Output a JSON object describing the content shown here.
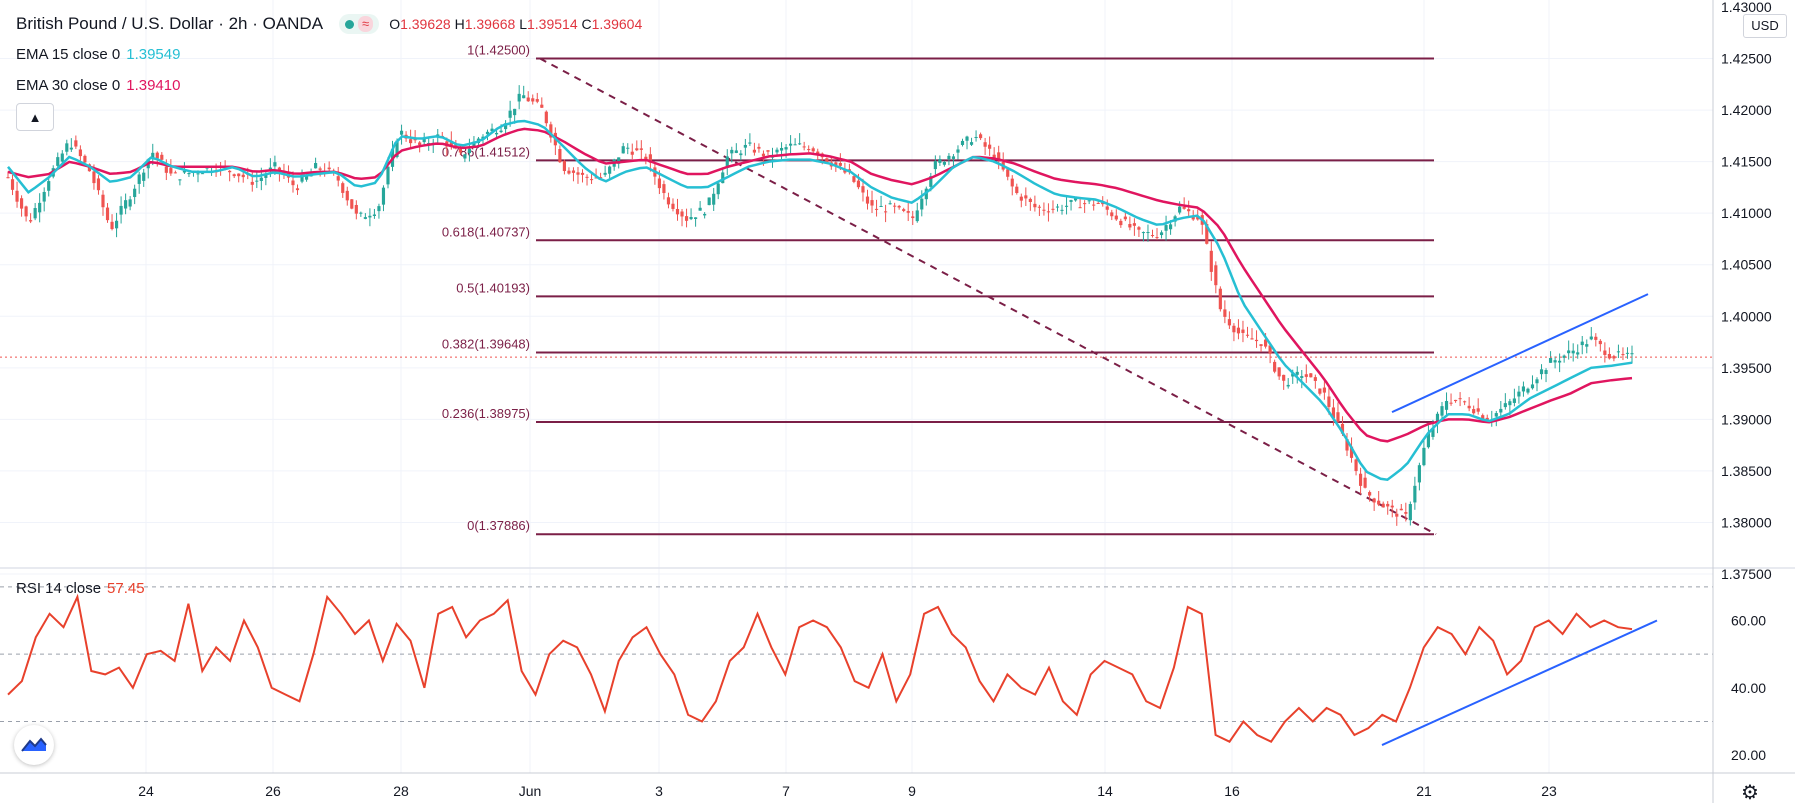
{
  "header": {
    "title": "British Pound / U.S. Dollar · 2h · OANDA",
    "open_label": "O",
    "open": "1.39628",
    "high_label": "H",
    "high": "1.39668",
    "low_label": "L",
    "low": "1.39514",
    "close_label": "C",
    "close": "1.39604",
    "wave_icon": "≈"
  },
  "indicators": {
    "ema15": {
      "label": "EMA 15 close 0",
      "value": "1.39549",
      "color": "#26bfd3"
    },
    "ema30": {
      "label": "EMA 30 close 0",
      "value": "1.39410",
      "color": "#e0155f"
    },
    "rsi": {
      "label": "RSI 14 close",
      "value": "57.45",
      "color": "#e8412c"
    }
  },
  "price_axis": {
    "currency": "USD",
    "top_partial": "1.43000",
    "ticks": [
      "1.42500",
      "1.42000",
      "1.41500",
      "1.41000",
      "1.40500",
      "1.40000",
      "1.39500",
      "1.39000",
      "1.38500",
      "1.38000",
      "1.37500"
    ]
  },
  "rsi_axis": {
    "ticks": [
      "60.00",
      "40.00",
      "20.00"
    ]
  },
  "time_axis": {
    "labels": [
      "24",
      "26",
      "28",
      "Jun",
      "3",
      "7",
      "9",
      "14",
      "16",
      "21",
      "23"
    ]
  },
  "colors": {
    "bull": "#26a69a",
    "bear": "#ef5350",
    "fib": "#7b1f47",
    "trend": "#2962ff"
  },
  "chart_data": [
    {
      "type": "candlestick",
      "title": "British Pound / U.S. Dollar, 2h, OANDA",
      "ylim": [
        1.375,
        1.43
      ],
      "x_labels": [
        "24",
        "26",
        "28",
        "Jun",
        "3",
        "7",
        "9",
        "14",
        "16",
        "21",
        "23"
      ],
      "fib_levels": [
        {
          "ratio": "1",
          "price": 1.425,
          "label": "1(1.42500)"
        },
        {
          "ratio": "0.786",
          "price": 1.41512,
          "label": "0.786(1.41512)"
        },
        {
          "ratio": "0.618",
          "price": 1.40737,
          "label": "0.618(1.40737)"
        },
        {
          "ratio": "0.5",
          "price": 1.40193,
          "label": "0.5(1.40193)"
        },
        {
          "ratio": "0.382",
          "price": 1.39648,
          "label": "0.382(1.39648)"
        },
        {
          "ratio": "0.236",
          "price": 1.38975,
          "label": "0.236(1.38975)"
        },
        {
          "ratio": "0",
          "price": 1.37886,
          "label": "0(1.37886)"
        }
      ],
      "close_anchors": [
        1.4135,
        1.409,
        1.4135,
        1.417,
        1.414,
        1.4085,
        1.412,
        1.416,
        1.4135,
        1.414,
        1.4145,
        1.414,
        1.413,
        1.4145,
        1.4125,
        1.4145,
        1.4135,
        1.4095,
        1.4105,
        1.418,
        1.4165,
        1.4175,
        1.4155,
        1.4175,
        1.4185,
        1.4215,
        1.42,
        1.4145,
        1.4135,
        1.4135,
        1.4165,
        1.4155,
        1.4115,
        1.4095,
        1.4105,
        1.4155,
        1.4165,
        1.4155,
        1.4165,
        1.4165,
        1.415,
        1.4135,
        1.4105,
        1.4105,
        1.4095,
        1.4145,
        1.416,
        1.4175,
        1.4155,
        1.412,
        1.4105,
        1.4105,
        1.411,
        1.411,
        1.4095,
        1.408,
        1.408,
        1.4105,
        1.4095,
        1.4005,
        1.398,
        1.3975,
        1.3935,
        1.3945,
        1.3925,
        1.388,
        1.383,
        1.3815,
        1.3805,
        1.388,
        1.392,
        1.3915,
        1.39,
        1.3915,
        1.3935,
        1.3955,
        1.3965,
        1.3978,
        1.3962,
        1.396
      ],
      "ema15_anchors": [
        1.4145,
        1.412,
        1.4135,
        1.4155,
        1.4145,
        1.413,
        1.4135,
        1.4155,
        1.4145,
        1.414,
        1.414,
        1.4145,
        1.4135,
        1.414,
        1.4135,
        1.4138,
        1.414,
        1.4125,
        1.413,
        1.4175,
        1.4172,
        1.4175,
        1.4165,
        1.417,
        1.4185,
        1.419,
        1.4185,
        1.4165,
        1.4145,
        1.413,
        1.414,
        1.4145,
        1.4135,
        1.4125,
        1.4125,
        1.4135,
        1.4145,
        1.415,
        1.4152,
        1.4152,
        1.4148,
        1.414,
        1.4125,
        1.4115,
        1.411,
        1.4125,
        1.4145,
        1.4155,
        1.415,
        1.414,
        1.4128,
        1.4118,
        1.4115,
        1.4113,
        1.4105,
        1.4095,
        1.4088,
        1.4095,
        1.4098,
        1.4065,
        1.4015,
        1.3985,
        1.3955,
        1.3935,
        1.3915,
        1.3885,
        1.385,
        1.384,
        1.3855,
        1.3885,
        1.3905,
        1.3905,
        1.3898,
        1.3905,
        1.392,
        1.393,
        1.394,
        1.395,
        1.3952,
        1.3955
      ],
      "ema30_anchors": [
        1.414,
        1.4135,
        1.4138,
        1.415,
        1.4145,
        1.4138,
        1.414,
        1.415,
        1.4145,
        1.4145,
        1.4145,
        1.4145,
        1.414,
        1.4142,
        1.4138,
        1.414,
        1.414,
        1.4133,
        1.4135,
        1.416,
        1.4165,
        1.4168,
        1.4163,
        1.4165,
        1.4175,
        1.4182,
        1.418,
        1.417,
        1.4158,
        1.4148,
        1.415,
        1.4152,
        1.4145,
        1.4138,
        1.4138,
        1.4145,
        1.415,
        1.4155,
        1.4157,
        1.4158,
        1.4155,
        1.415,
        1.4138,
        1.4132,
        1.4128,
        1.4135,
        1.4145,
        1.4155,
        1.4153,
        1.4148,
        1.414,
        1.4133,
        1.413,
        1.4128,
        1.4124,
        1.4118,
        1.4112,
        1.4108,
        1.4105,
        1.4085,
        1.405,
        1.402,
        1.399,
        1.3965,
        1.394,
        1.391,
        1.3885,
        1.3878,
        1.3885,
        1.3895,
        1.39,
        1.39,
        1.3897,
        1.3902,
        1.391,
        1.3918,
        1.3925,
        1.3935,
        1.3938,
        1.394
      ],
      "last_price": 1.39604
    },
    {
      "type": "line",
      "title": "RSI 14 close",
      "ylim": [
        15,
        75
      ],
      "bands": [
        70,
        50,
        30
      ],
      "values": [
        38,
        42,
        55,
        62,
        58,
        67,
        45,
        44,
        46,
        40,
        50,
        51,
        48,
        65,
        45,
        52,
        48,
        60,
        52,
        40,
        38,
        36,
        50,
        67,
        62,
        56,
        60,
        48,
        59,
        54,
        40,
        62,
        64,
        55,
        60,
        62,
        66,
        45,
        38,
        50,
        54,
        52,
        44,
        33,
        48,
        55,
        58,
        50,
        44,
        32,
        30,
        36,
        48,
        52,
        62,
        52,
        44,
        58,
        60,
        58,
        52,
        42,
        40,
        50,
        36,
        44,
        62,
        64,
        56,
        52,
        42,
        36,
        44,
        40,
        38,
        46,
        36,
        32,
        44,
        48,
        46,
        44,
        36,
        34,
        46,
        64,
        62,
        26,
        24,
        30,
        26,
        24,
        30,
        34,
        30,
        34,
        32,
        26,
        28,
        32,
        30,
        40,
        52,
        58,
        56,
        50,
        58,
        54,
        44,
        48,
        58,
        60,
        56,
        62,
        58,
        60,
        58,
        57.45
      ],
      "last": 57.45
    }
  ]
}
